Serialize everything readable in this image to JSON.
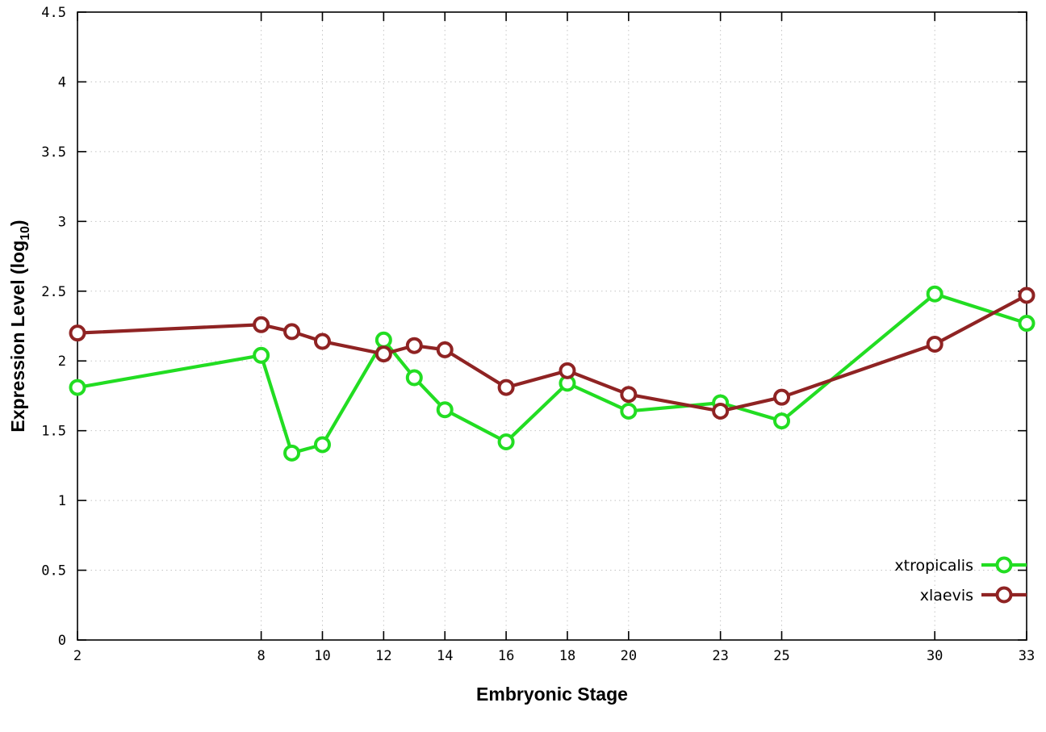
{
  "chart_data": {
    "type": "line",
    "title": "",
    "xlabel": "Embryonic Stage",
    "ylabel": "Expression Level (log10)",
    "ylabel_rich": [
      {
        "text": "Expression Level (log",
        "sub": false
      },
      {
        "text": "10",
        "sub": true
      },
      {
        "text": ")",
        "sub": false
      }
    ],
    "xlim": [
      2,
      33
    ],
    "ylim": [
      0,
      4.5
    ],
    "xticks": [
      2,
      8,
      10,
      12,
      14,
      16,
      18,
      20,
      23,
      25,
      30,
      33
    ],
    "yticks": [
      0,
      0.5,
      1,
      1.5,
      2,
      2.5,
      3,
      3.5,
      4,
      4.5
    ],
    "grid": true,
    "grid_color": "#c4c4c4",
    "border_color": "#000000",
    "legend_position": "bottom-right",
    "x": [
      2,
      8,
      9,
      10,
      12,
      13,
      14,
      16,
      18,
      20,
      23,
      25,
      30,
      33
    ],
    "series": [
      {
        "name": "xtropicalis",
        "label": "xtropicalis",
        "color": "#22dd22",
        "values": [
          1.81,
          2.04,
          1.34,
          1.4,
          2.15,
          1.88,
          1.65,
          1.42,
          1.84,
          1.64,
          1.7,
          1.57,
          2.48,
          2.27
        ]
      },
      {
        "name": "xlaevis",
        "label": "xlaevis",
        "color": "#8f2323",
        "values": [
          2.2,
          2.26,
          2.21,
          2.14,
          2.05,
          2.11,
          2.08,
          1.81,
          1.93,
          1.76,
          1.64,
          1.74,
          2.12,
          2.47
        ]
      }
    ]
  }
}
